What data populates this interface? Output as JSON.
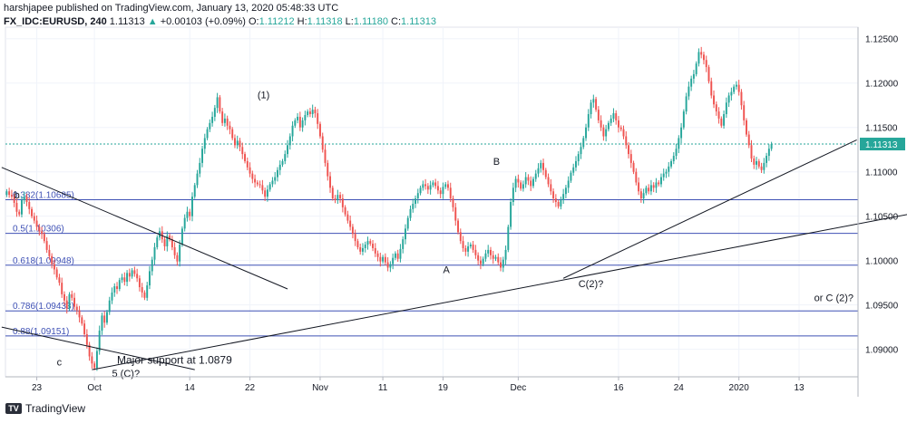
{
  "header": {
    "line1": "harshjapee published on TradingView.com, January 13, 2020 05:48:33 UTC",
    "symbol": "FX_IDC:EURUSD, 240",
    "last": "1.11313",
    "arrow": "▲",
    "change": "+0.00103 (+0.09%)",
    "o_label": "O:",
    "o_val": "1.11212",
    "h_label": "H:",
    "h_val": "1.11318",
    "l_label": "L:",
    "l_val": "1.11180",
    "c_label": "C:",
    "c_val": "1.11313"
  },
  "logo": {
    "text": "TradingView"
  },
  "colors": {
    "up": "#26a69a",
    "down": "#ef5350",
    "fib": "#3f51b5",
    "price": "#26a69a",
    "trend": "#131722"
  },
  "chart_data": {
    "type": "candlestick",
    "ylim": [
      1.0869,
      1.1263
    ],
    "y_ticks": [
      "1.12500",
      "1.12000",
      "1.11500",
      "1.11000",
      "1.10500",
      "1.10000",
      "1.09500",
      "1.09000"
    ],
    "y_tick_values": [
      1.125,
      1.12,
      1.115,
      1.11,
      1.105,
      1.1,
      1.095,
      1.09
    ],
    "x_tick_labels": [
      "23",
      "Oct",
      "14",
      "22",
      "Nov",
      "11",
      "19",
      "Dec",
      "16",
      "24",
      "2020",
      "13"
    ],
    "x_tick_index": [
      12,
      35,
      73,
      97,
      125,
      150,
      174,
      204,
      244,
      268,
      292,
      316
    ],
    "current_price": 1.11313,
    "current_price_label": "1.11313",
    "fib_levels": [
      {
        "label": "0.382(1.10685)",
        "value": 1.10685
      },
      {
        "label": "0.5(1.10306)",
        "value": 1.10306
      },
      {
        "label": "0.618(1.09948)",
        "value": 1.09948
      },
      {
        "label": "0.786(1.09433)",
        "value": 1.09433
      },
      {
        "label": "0.88(1.09151)",
        "value": 1.09151
      }
    ],
    "closes": [
      1.1078,
      1.1074,
      1.1072,
      1.1065,
      1.1055,
      1.1052,
      1.1068,
      1.1072,
      1.1066,
      1.1058,
      1.105,
      1.1045,
      1.1038,
      1.1033,
      1.103,
      1.1022,
      1.1012,
      1.1005,
      1.0996,
      1.099,
      1.0981,
      1.0975,
      1.0962,
      1.0955,
      1.0946,
      1.0962,
      1.0958,
      1.0948,
      1.0944,
      1.0936,
      1.0929,
      1.0917,
      1.0905,
      1.0892,
      1.0884,
      1.0879,
      1.0898,
      1.0921,
      1.0938,
      1.093,
      1.0942,
      1.0955,
      1.0964,
      1.0971,
      1.0968,
      1.0978,
      1.0981,
      1.0976,
      1.0986,
      1.0982,
      1.0989,
      1.0985,
      1.098,
      1.097,
      1.0964,
      1.0958,
      1.0972,
      1.0988,
      1.1001,
      1.1015,
      1.1026,
      1.1033,
      1.1024,
      1.1016,
      1.1028,
      1.1024,
      1.1015,
      1.1006,
      1.0999,
      1.1018,
      1.1036,
      1.1048,
      1.1055,
      1.105,
      1.1072,
      1.1085,
      1.1098,
      1.111,
      1.1126,
      1.1138,
      1.1148,
      1.1155,
      1.1162,
      1.1172,
      1.1184,
      1.1168,
      1.1155,
      1.116,
      1.1152,
      1.1148,
      1.1138,
      1.113,
      1.1135,
      1.1128,
      1.112,
      1.1112,
      1.1105,
      1.1098,
      1.1092,
      1.1088,
      1.1086,
      1.1085,
      1.1079,
      1.1072,
      1.108,
      1.1086,
      1.109,
      1.1094,
      1.1102,
      1.1108,
      1.1112,
      1.112,
      1.113,
      1.114,
      1.1152,
      1.1158,
      1.1162,
      1.115,
      1.1158,
      1.1164,
      1.1168,
      1.1165,
      1.117,
      1.1166,
      1.1154,
      1.114,
      1.1125,
      1.111,
      1.1095,
      1.1082,
      1.107,
      1.1068,
      1.1074,
      1.107,
      1.106,
      1.1052,
      1.1045,
      1.1038,
      1.103,
      1.1022,
      1.1015,
      1.101,
      1.1014,
      1.1018,
      1.1022,
      1.1019,
      1.1014,
      1.1008,
      1.1004,
      1.0999,
      1.1004,
      1.0998,
      1.0992,
      1.0996,
      1.1003,
      1.1008,
      1.1002,
      1.1013,
      1.1024,
      1.1036,
      1.1048,
      1.1058,
      1.1064,
      1.107,
      1.1076,
      1.1082,
      1.1086,
      1.1084,
      1.108,
      1.1085,
      1.1088,
      1.1084,
      1.1079,
      1.1075,
      1.1083,
      1.1086,
      1.1082,
      1.107,
      1.106,
      1.1045,
      1.1032,
      1.1022,
      1.1014,
      1.101,
      1.1016,
      1.1018,
      1.1012,
      1.1006,
      1.1,
      1.0996,
      1.1002,
      1.1008,
      1.1012,
      1.1006,
      1.1002,
      1.1004,
      1.0998,
      1.0992,
      1.1001,
      1.1012,
      1.1038,
      1.1066,
      1.1082,
      1.1092,
      1.1088,
      1.1081,
      1.1086,
      1.1094,
      1.109,
      1.1084,
      1.1092,
      1.1098,
      1.1104,
      1.111,
      1.1102,
      1.1094,
      1.1086,
      1.1078,
      1.107,
      1.1066,
      1.1061,
      1.1068,
      1.1075,
      1.1082,
      1.109,
      1.1099,
      1.1105,
      1.1112,
      1.112,
      1.1128,
      1.1138,
      1.115,
      1.1165,
      1.1178,
      1.1182,
      1.117,
      1.1158,
      1.115,
      1.114,
      1.1148,
      1.1155,
      1.116,
      1.1166,
      1.1158,
      1.115,
      1.1148,
      1.114,
      1.113,
      1.112,
      1.111,
      1.11,
      1.1088,
      1.1078,
      1.107,
      1.1076,
      1.1082,
      1.1078,
      1.1085,
      1.1082,
      1.1088,
      1.1086,
      1.1094,
      1.1098,
      1.11,
      1.1106,
      1.1112,
      1.1118,
      1.1126,
      1.1138,
      1.115,
      1.1168,
      1.1185,
      1.1196,
      1.1205,
      1.121,
      1.1222,
      1.1235,
      1.1232,
      1.1226,
      1.1218,
      1.1202,
      1.1186,
      1.1176,
      1.1168,
      1.116,
      1.1152,
      1.1165,
      1.1178,
      1.1186,
      1.119,
      1.1196,
      1.1198,
      1.119,
      1.1175,
      1.1158,
      1.1142,
      1.113,
      1.1115,
      1.1108,
      1.1112,
      1.1106,
      1.1102,
      1.111,
      1.1118,
      1.1126,
      1.11313
    ],
    "trendlines": [
      {
        "from": [
          -2,
          1.1105
        ],
        "to": [
          112,
          1.0968
        ]
      },
      {
        "from": [
          -2,
          1.0925
        ],
        "to": [
          75,
          1.0877
        ]
      },
      {
        "from": [
          34,
          1.0877
        ],
        "to": [
          376,
          1.1061
        ]
      },
      {
        "from": [
          222,
          1.098
        ],
        "to": [
          339,
          1.1136
        ]
      }
    ],
    "annotations": [
      {
        "text": "(1)",
        "at": [
          100,
          1.1183
        ]
      },
      {
        "text": "B",
        "at": [
          194,
          1.1108
        ]
      },
      {
        "text": "A",
        "at": [
          174,
          1.0986
        ]
      },
      {
        "text": "C(2)?",
        "at": [
          228,
          1.097
        ]
      },
      {
        "text": "b",
        "at": [
          3,
          1.107
        ]
      },
      {
        "text": "c",
        "at": [
          20,
          1.0882
        ]
      },
      {
        "text": "5 (C)?",
        "at": [
          42,
          1.0869
        ]
      },
      {
        "text": "Major support at 1.0879",
        "at": [
          44,
          1.0884
        ]
      },
      {
        "text": "or C (2)?",
        "at": [
          322,
          1.0954
        ]
      }
    ],
    "grid": true,
    "legend": "none"
  }
}
